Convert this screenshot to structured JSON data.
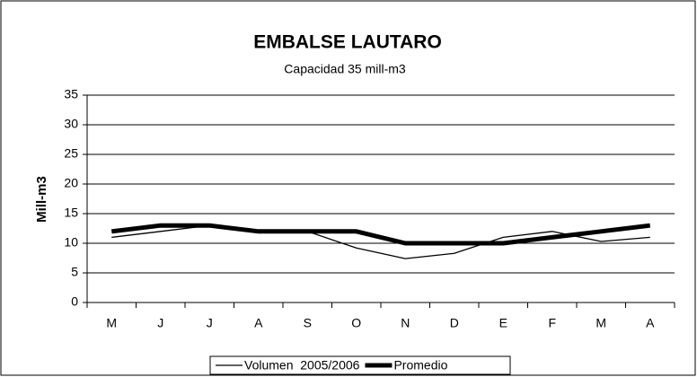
{
  "chart_data": {
    "type": "line",
    "title": "EMBALSE LAUTARO",
    "subtitle": "Capacidad 35 mill-m3",
    "y_label": "Mill-m3",
    "categories": [
      "M",
      "J",
      "J",
      "A",
      "S",
      "O",
      "N",
      "D",
      "E",
      "F",
      "M",
      "A"
    ],
    "series": [
      {
        "name": "Volumen  2005/2006",
        "color": "#000000",
        "width": 1.3,
        "values": [
          11,
          12,
          13,
          12,
          12,
          9.2,
          7.4,
          8.3,
          11,
          12,
          10.3,
          11
        ]
      },
      {
        "name": "Promedio",
        "color": "#000000",
        "width": 5,
        "values": [
          12,
          13,
          13,
          12,
          12,
          12,
          10,
          10,
          10,
          11,
          12,
          13
        ]
      }
    ],
    "ylim": [
      0,
      35
    ],
    "yticks": [
      0,
      5,
      10,
      15,
      20,
      25,
      30,
      35
    ],
    "grid": true,
    "legend": "bottom"
  }
}
